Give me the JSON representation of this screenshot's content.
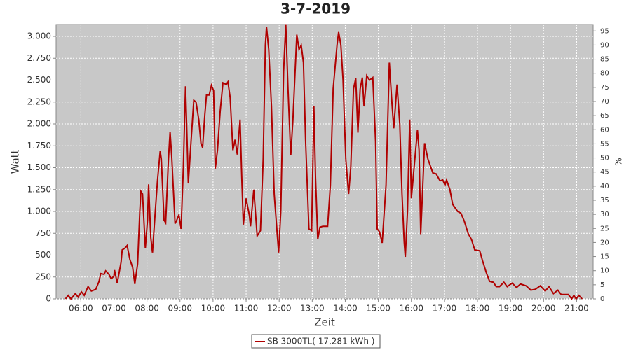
{
  "chart_data": {
    "type": "line",
    "title": "3-7-2019",
    "x_label": "Zeit",
    "y_label": "Watt",
    "y2_label": "%",
    "x": [
      332,
      337,
      342,
      350,
      355,
      361,
      366,
      373,
      379,
      387,
      393,
      396,
      402,
      405,
      411,
      415,
      420,
      421,
      426,
      433,
      435,
      440,
      444,
      449,
      454,
      458,
      463,
      467,
      469,
      472,
      477,
      481,
      483,
      487,
      490,
      494,
      499,
      504,
      506,
      511,
      514,
      519,
      522,
      525,
      531,
      534,
      538,
      542,
      546,
      550,
      552,
      555,
      560,
      565,
      569,
      574,
      578,
      581,
      585,
      588,
      593,
      597,
      601,
      604,
      608,
      613,
      618,
      624,
      627,
      631,
      636,
      640,
      644,
      649,
      652,
      655,
      660,
      666,
      668,
      674,
      680,
      686,
      691,
      695,
      697,
      701,
      706,
      711,
      719,
      723,
      728,
      732,
      736,
      741,
      745,
      752,
      756,
      760,
      764,
      768,
      774,
      779,
      783,
      786,
      790,
      794,
      799,
      808,
      813,
      818,
      825,
      828,
      832,
      836,
      841,
      846,
      850,
      855,
      859,
      863,
      867,
      871,
      874,
      879,
      884,
      890,
      895,
      898,
      902,
      907,
      914,
      920,
      924,
      928,
      934,
      939,
      943,
      947,
      949,
      953,
      957,
      960,
      971,
      974,
      977,
      984,
      990,
      999,
      1005,
      1012,
      1017,
      1021,
      1024,
      1030,
      1035,
      1044,
      1050,
      1056,
      1063,
      1069,
      1075,
      1084,
      1089,
      1096,
      1102,
      1109,
      1114,
      1120,
      1128,
      1134,
      1143,
      1151,
      1158,
      1168,
      1177,
      1185,
      1194,
      1203,
      1210,
      1218,
      1226,
      1232,
      1245,
      1251,
      1255,
      1259,
      1264,
      1270
    ],
    "series": [
      {
        "name": "SB 3000TL( 17,281 kWh )",
        "color": "#b00000",
        "values": [
          0,
          40,
          0,
          60,
          20,
          80,
          40,
          140,
          90,
          110,
          200,
          290,
          280,
          320,
          280,
          230,
          260,
          330,
          180,
          420,
          560,
          580,
          610,
          450,
          360,
          170,
          400,
          1000,
          1230,
          1200,
          580,
          900,
          1310,
          700,
          530,
          900,
          1350,
          1690,
          1600,
          900,
          870,
          1600,
          1910,
          1620,
          860,
          900,
          960,
          800,
          1500,
          2430,
          2000,
          1320,
          1800,
          2270,
          2250,
          2050,
          1780,
          1730,
          2100,
          2330,
          2330,
          2440,
          2380,
          1490,
          1700,
          2150,
          2470,
          2450,
          2480,
          2300,
          1700,
          1820,
          1650,
          2050,
          1400,
          850,
          1150,
          950,
          830,
          1250,
          720,
          780,
          1600,
          2900,
          3110,
          2850,
          2200,
          1200,
          530,
          1000,
          2600,
          3140,
          2400,
          1640,
          2050,
          3020,
          2850,
          2900,
          2700,
          1800,
          800,
          780,
          2200,
          1400,
          680,
          820,
          830,
          830,
          1300,
          2400,
          2900,
          3050,
          2900,
          2500,
          1600,
          1200,
          1500,
          2400,
          2520,
          1900,
          2400,
          2530,
          2200,
          2550,
          2500,
          2530,
          1800,
          800,
          770,
          640,
          1300,
          2700,
          2300,
          1950,
          2450,
          2000,
          1200,
          650,
          480,
          1000,
          2050,
          1150,
          1930,
          1700,
          740,
          1780,
          1600,
          1440,
          1430,
          1350,
          1360,
          1300,
          1360,
          1250,
          1080,
          1000,
          980,
          890,
          750,
          680,
          560,
          550,
          440,
          300,
          200,
          190,
          140,
          140,
          190,
          140,
          180,
          130,
          170,
          150,
          100,
          110,
          150,
          90,
          140,
          60,
          100,
          50,
          50,
          0,
          40,
          0,
          40,
          0
        ]
      }
    ],
    "xlim": [
      315,
      1290
    ],
    "xticks": [
      {
        "value": 360,
        "label": "06:00"
      },
      {
        "value": 420,
        "label": "07:00"
      },
      {
        "value": 480,
        "label": "08:00"
      },
      {
        "value": 540,
        "label": "09:00"
      },
      {
        "value": 600,
        "label": "10:00"
      },
      {
        "value": 660,
        "label": "11:00"
      },
      {
        "value": 720,
        "label": "12:00"
      },
      {
        "value": 780,
        "label": "13:00"
      },
      {
        "value": 840,
        "label": "14:00"
      },
      {
        "value": 900,
        "label": "15:00"
      },
      {
        "value": 960,
        "label": "16:00"
      },
      {
        "value": 1020,
        "label": "17:00"
      },
      {
        "value": 1080,
        "label": "18:00"
      },
      {
        "value": 1140,
        "label": "19:00"
      },
      {
        "value": 1200,
        "label": "20:00"
      },
      {
        "value": 1260,
        "label": "21:00"
      }
    ],
    "ylim": [
      0,
      3136
    ],
    "yticks": [
      0,
      250,
      500,
      750,
      {
        "value": 1000,
        "label": "1.000"
      },
      {
        "value": 1250,
        "label": "1.250"
      },
      {
        "value": 1500,
        "label": "1.500"
      },
      {
        "value": 1750,
        "label": "1.750"
      },
      {
        "value": 2000,
        "label": "2.000"
      },
      {
        "value": 2250,
        "label": "2.250"
      },
      {
        "value": 2500,
        "label": "2.500"
      },
      {
        "value": 2750,
        "label": "2.750"
      },
      {
        "value": 3000,
        "label": "3.000"
      }
    ],
    "y2lim": [
      0,
      97.3
    ],
    "y2ticks": [
      0,
      5,
      10,
      15,
      20,
      25,
      30,
      35,
      40,
      45,
      50,
      55,
      60,
      65,
      70,
      75,
      80,
      85,
      90,
      95
    ],
    "grid": true
  }
}
